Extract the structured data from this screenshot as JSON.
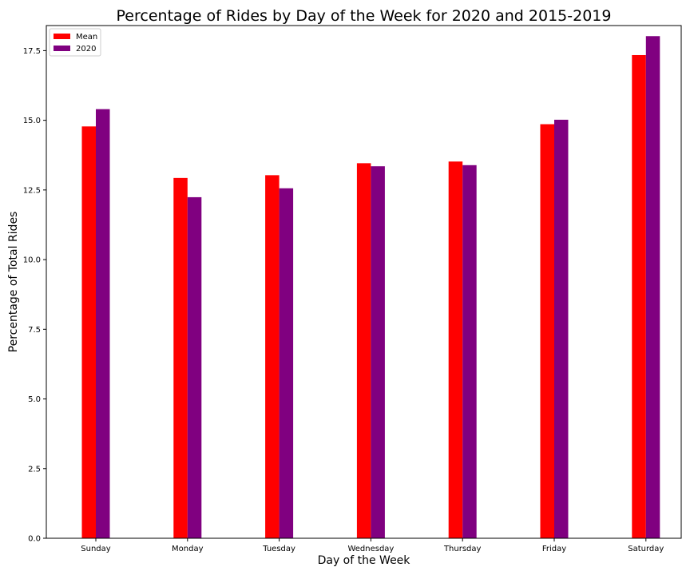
{
  "chart_data": {
    "type": "bar",
    "title": "Percentage of Rides by Day of the Week for 2020 and 2015-2019",
    "xlabel": "Day of the Week",
    "ylabel": "Percentage of Total Rides",
    "categories": [
      "Sunday",
      "Monday",
      "Tuesday",
      "Wednesday",
      "Thursday",
      "Friday",
      "Saturday"
    ],
    "series": [
      {
        "name": "Mean",
        "color": "#ff0000",
        "values": [
          14.78,
          12.93,
          13.03,
          13.46,
          13.52,
          14.86,
          17.34
        ]
      },
      {
        "name": "2020",
        "color": "#800080",
        "values": [
          15.4,
          12.24,
          12.56,
          13.35,
          13.39,
          15.02,
          18.02
        ]
      }
    ],
    "ylim": [
      0,
      18.4
    ],
    "yticks": [
      "0.0",
      "2.5",
      "5.0",
      "7.5",
      "10.0",
      "12.5",
      "15.0",
      "17.5"
    ],
    "grid": false,
    "legend_position": "top-left"
  }
}
